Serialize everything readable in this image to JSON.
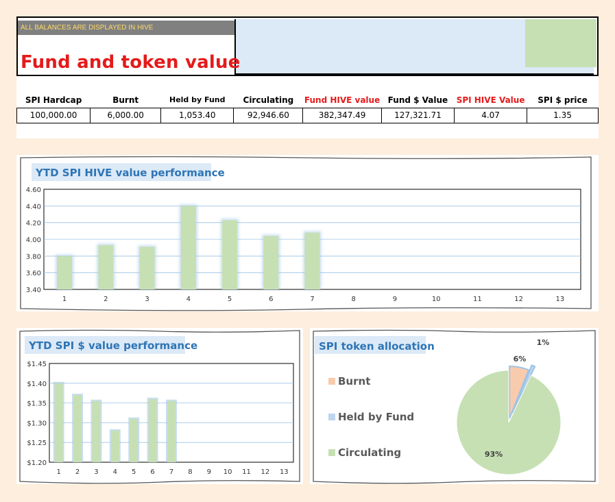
{
  "header": {
    "notice": "ALL BALANCES ARE DISPLAYED IN HIVE",
    "title": "Fund and token value",
    "columns": [
      "SPI Hardcap",
      "Burnt",
      "Held by Fund",
      "Circulating",
      "Fund HIVE value",
      "Fund $ Value",
      "SPI HIVE Value",
      "SPI $ price"
    ],
    "values": [
      "100,000.00",
      "6,000.00",
      "1,053.40",
      "92,946.60",
      "382,347.49",
      "127,321.71",
      "4.07",
      "1.35"
    ]
  },
  "colors": {
    "accent_red": "#e41b1b",
    "bar_green": "#c6e0b4",
    "bar_glow": "#9dc3e6",
    "title_blue": "#2e75b6",
    "burnt": "#f8cbad",
    "held": "#bdd7ee",
    "circulating": "#c6e0b4"
  },
  "chart_data": [
    {
      "type": "bar",
      "title": "YTD SPI HIVE value performance",
      "categories": [
        "1",
        "2",
        "3",
        "4",
        "5",
        "6",
        "7",
        "8",
        "9",
        "10",
        "11",
        "12",
        "13"
      ],
      "values": [
        3.8,
        3.93,
        3.91,
        4.4,
        4.23,
        4.04,
        4.08,
        null,
        null,
        null,
        null,
        null,
        null
      ],
      "ylim": [
        3.4,
        4.6
      ],
      "yticks": [
        "3.40",
        "3.60",
        "3.80",
        "4.00",
        "4.20",
        "4.40",
        "4.60"
      ],
      "grid": true
    },
    {
      "type": "bar",
      "title": "YTD SPI $ value performance",
      "categories": [
        "1",
        "2",
        "3",
        "4",
        "5",
        "6",
        "7",
        "8",
        "9",
        "10",
        "11",
        "12",
        "13"
      ],
      "values": [
        1.4,
        1.37,
        1.355,
        1.28,
        1.31,
        1.36,
        1.355,
        null,
        null,
        null,
        null,
        null,
        null
      ],
      "ylim": [
        1.2,
        1.45
      ],
      "yticks": [
        "$1.20",
        "$1.25",
        "$1.30",
        "$1.35",
        "$1.40",
        "$1.45"
      ],
      "grid": true
    },
    {
      "type": "pie",
      "title": "SPI token allocation",
      "labels": [
        "Burnt",
        "Held by Fund",
        "Circulating"
      ],
      "values": [
        6000,
        1053.4,
        92946.6
      ],
      "data_labels": [
        "6%",
        "1%",
        "93%"
      ],
      "legend_position": "left"
    }
  ]
}
